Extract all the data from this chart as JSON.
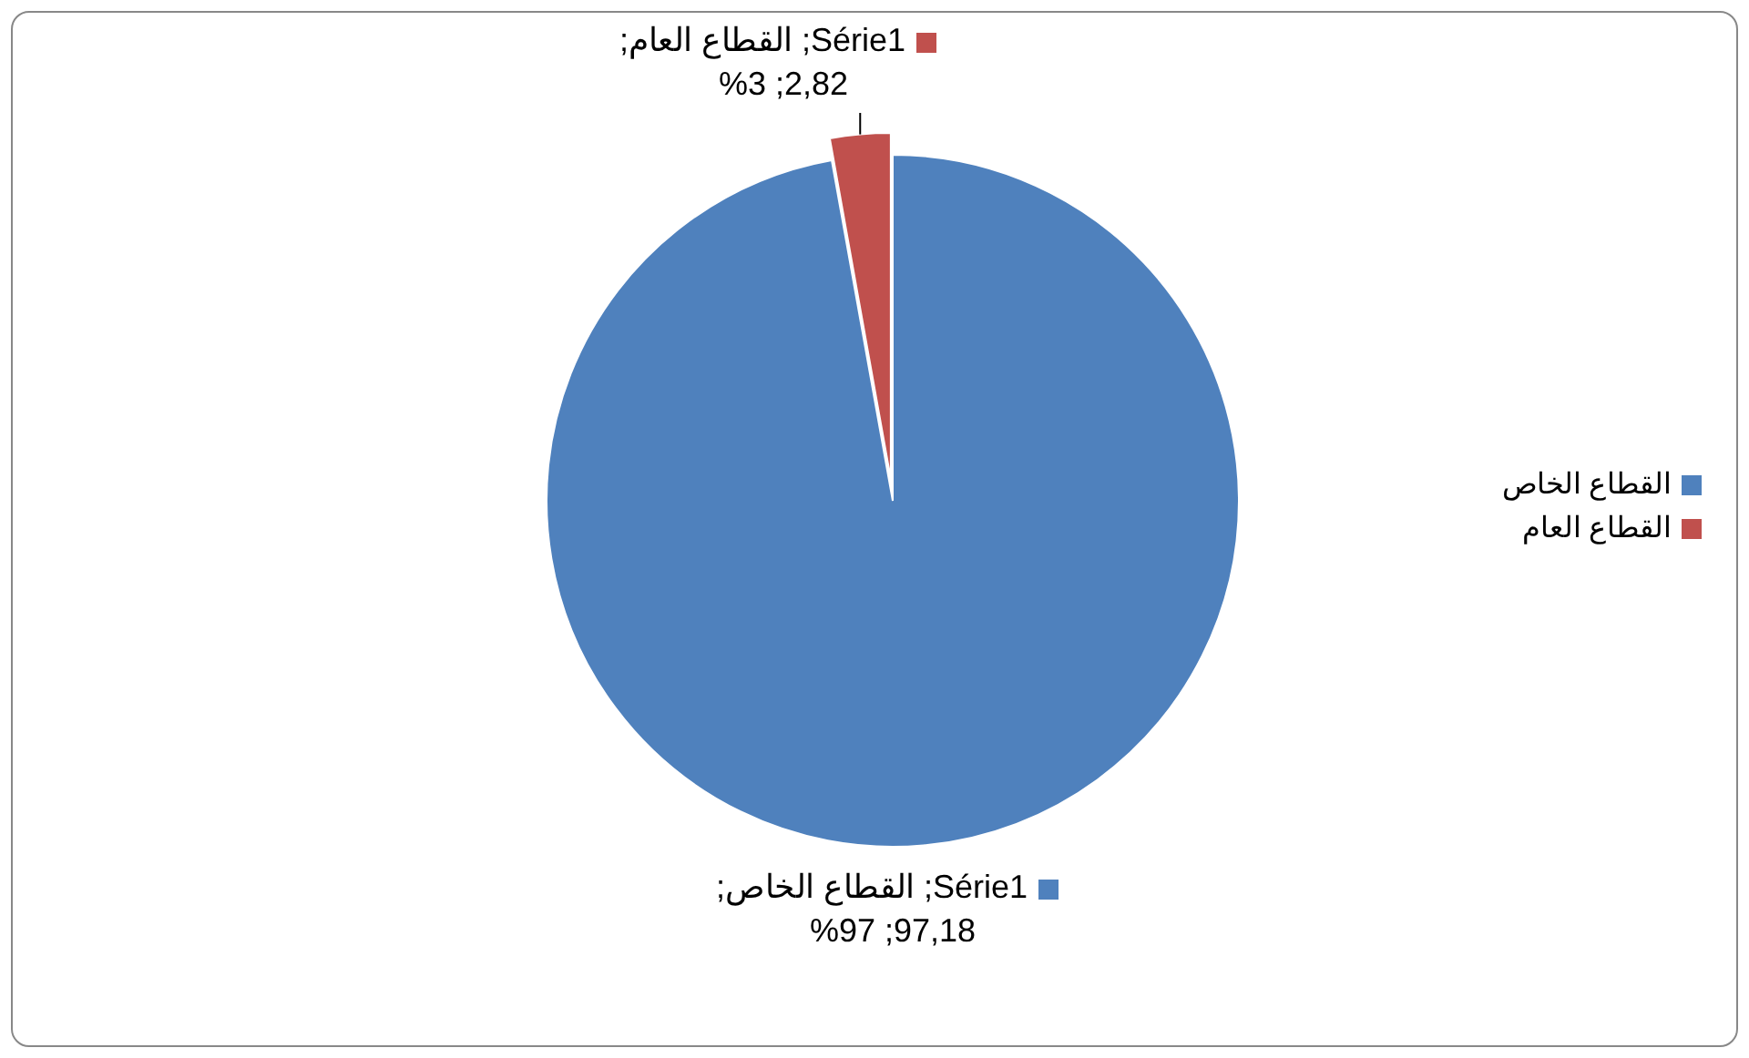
{
  "chart_data": {
    "type": "pie",
    "categories": [
      "القطاع الخاص",
      "القطاع العام"
    ],
    "values": [
      97.18,
      2.82
    ],
    "colors": [
      "#4f81bd",
      "#c0504d"
    ],
    "value_labels": [
      "Série1; القطاع الخاص; 97,18; 97%",
      "Série1; القطاع العام; 2,82; 3%"
    ],
    "legend": "right"
  }
}
